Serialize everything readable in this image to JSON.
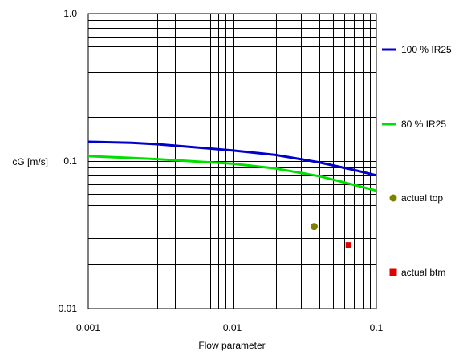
{
  "chart_data": {
    "type": "line",
    "xlabel": "Flow parameter",
    "ylabel": "cG [m/s]",
    "x_scale": "log",
    "y_scale": "log",
    "xlim": [
      0.001,
      0.1
    ],
    "ylim": [
      0.01,
      1.0
    ],
    "grid": true,
    "legend_position": "right",
    "x_ticks": [
      "0.001",
      "0.01",
      "0.1"
    ],
    "y_ticks": [
      "0.01",
      "0.1",
      "1.0"
    ],
    "series": [
      {
        "name": "100 % IR25",
        "kind": "line",
        "color": "#0000cc",
        "x": [
          0.001,
          0.002,
          0.003,
          0.005,
          0.01,
          0.02,
          0.04,
          0.07,
          0.1
        ],
        "y": [
          0.135,
          0.133,
          0.13,
          0.125,
          0.118,
          0.11,
          0.098,
          0.087,
          0.08
        ]
      },
      {
        "name": "80 % IR25",
        "kind": "line",
        "color": "#00e000",
        "x": [
          0.001,
          0.002,
          0.003,
          0.005,
          0.01,
          0.02,
          0.04,
          0.07,
          0.1
        ],
        "y": [
          0.108,
          0.105,
          0.103,
          0.1,
          0.096,
          0.089,
          0.079,
          0.069,
          0.063
        ]
      },
      {
        "name": "actual top",
        "kind": "point",
        "marker": "circle",
        "color": "#808000",
        "x": [
          0.037
        ],
        "y": [
          0.036
        ]
      },
      {
        "name": "actual btm",
        "kind": "point",
        "marker": "square",
        "color": "#e00000",
        "x": [
          0.064
        ],
        "y": [
          0.027
        ]
      }
    ]
  }
}
